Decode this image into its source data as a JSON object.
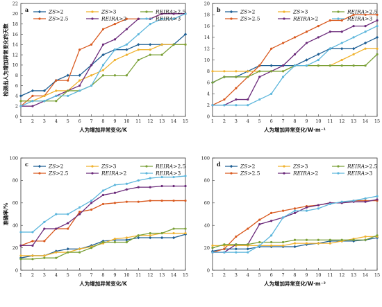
{
  "chart_data": [
    {
      "type": "line",
      "panel_label": "a",
      "xlabel": "人为增加异常变化/K",
      "ylabel": "检测出人为增加异常变化的天数",
      "xlim": [
        1,
        15
      ],
      "ylim": [
        0,
        22
      ],
      "xticks": [
        1,
        2,
        3,
        4,
        5,
        6,
        7,
        8,
        9,
        10,
        11,
        12,
        13,
        14,
        15
      ],
      "yticks": [
        0,
        2,
        4,
        6,
        8,
        10,
        12,
        14,
        16,
        18,
        20,
        22
      ],
      "grid": false,
      "legend": "top",
      "x": [
        1,
        2,
        3,
        4,
        5,
        6,
        7,
        8,
        9,
        10,
        11,
        12,
        13,
        14,
        15
      ],
      "series": [
        {
          "name_italic": "ZS",
          "name_rest": ">2",
          "color": "#1f5f94",
          "marker": "diamond",
          "values": [
            4,
            5,
            5,
            7,
            8,
            8,
            10,
            12,
            13,
            13,
            14,
            14,
            14,
            14,
            16
          ]
        },
        {
          "name_italic": "ZS",
          "name_rest": ">2.5",
          "color": "#d9591e",
          "marker": "circle",
          "values": [
            2,
            4,
            4,
            7,
            7,
            13,
            14,
            17,
            18,
            19,
            19,
            19,
            20,
            20,
            20
          ]
        },
        {
          "name_italic": "ZS",
          "name_rest": ">3",
          "color": "#f0b22e",
          "marker": "circle",
          "values": [
            3,
            3,
            4,
            5,
            5,
            7,
            8,
            9,
            11,
            12,
            13,
            13,
            14,
            14,
            14
          ]
        },
        {
          "name_italic": "REIRA",
          "name_rest": ">2",
          "color": "#6b2a7a",
          "marker": "circle",
          "values": [
            2,
            2,
            3,
            4,
            5,
            6,
            10,
            14,
            15,
            17,
            19,
            19,
            20,
            20,
            20
          ]
        },
        {
          "name_italic": "REIRA",
          "name_rest": ">2.5",
          "color": "#7aa037",
          "marker": "circle",
          "values": [
            3,
            3,
            3,
            3,
            5,
            5,
            6,
            8,
            8,
            8,
            11,
            12,
            12,
            14,
            14
          ]
        },
        {
          "name_italic": "REIRA",
          "name_rest": ">3",
          "color": "#5cb6dc",
          "marker": "circle",
          "values": [
            2,
            3,
            3,
            4,
            4,
            5,
            6,
            10,
            13,
            14,
            16,
            18,
            19,
            19,
            20
          ]
        }
      ]
    },
    {
      "type": "line",
      "panel_label": "b",
      "xlabel": "人为增加异常变化/W·m⁻¹",
      "ylabel": "",
      "xlim": [
        1,
        15
      ],
      "ylim": [
        0,
        20
      ],
      "xticks": [
        1,
        2,
        3,
        4,
        5,
        6,
        7,
        8,
        9,
        10,
        11,
        12,
        13,
        14,
        15
      ],
      "yticks": [
        0,
        2,
        4,
        6,
        8,
        10,
        12,
        14,
        16,
        18,
        20
      ],
      "grid": false,
      "legend": "top",
      "x": [
        1,
        2,
        3,
        4,
        5,
        6,
        7,
        8,
        9,
        10,
        11,
        12,
        13,
        14,
        15
      ],
      "series": [
        {
          "name_italic": "ZS",
          "name_rest": ">2",
          "color": "#1f5f94",
          "marker": "diamond",
          "values": [
            6,
            7,
            7,
            8,
            9,
            9,
            9,
            9,
            10,
            11,
            12,
            12,
            12,
            13,
            14
          ]
        },
        {
          "name_italic": "ZS",
          "name_rest": ">2.5",
          "color": "#d9591e",
          "marker": "circle",
          "values": [
            2,
            3,
            5,
            7,
            9,
            12,
            13,
            14,
            15,
            16,
            17,
            17,
            18,
            18,
            18
          ]
        },
        {
          "name_italic": "ZS",
          "name_rest": ">3",
          "color": "#f0b22e",
          "marker": "circle",
          "values": [
            8,
            8,
            8,
            8,
            8,
            8,
            8,
            9,
            9,
            9,
            9,
            10,
            11,
            12,
            12
          ]
        },
        {
          "name_italic": "REIRA",
          "name_rest": ">2",
          "color": "#6b2a7a",
          "marker": "circle",
          "values": [
            2,
            2,
            3,
            3,
            7,
            8,
            9,
            11,
            13,
            14,
            15,
            15,
            16,
            16,
            17
          ]
        },
        {
          "name_italic": "REIRA",
          "name_rest": ">2.5",
          "color": "#7aa037",
          "marker": "circle",
          "values": [
            6,
            7,
            7,
            7,
            8,
            8,
            8,
            9,
            9,
            9,
            9,
            9,
            9,
            9,
            11
          ]
        },
        {
          "name_italic": "REIRA",
          "name_rest": ">3",
          "color": "#5cb6dc",
          "marker": "circle",
          "values": [
            2,
            2,
            2,
            2,
            3,
            4,
            7,
            9,
            9,
            10,
            12,
            13,
            14,
            15,
            16
          ]
        }
      ]
    },
    {
      "type": "line",
      "panel_label": "c",
      "xlabel": "人为增加异常变化/K",
      "ylabel": "准确率/%",
      "xlim": [
        1,
        15
      ],
      "ylim": [
        0,
        100
      ],
      "xticks": [
        1,
        2,
        3,
        4,
        5,
        6,
        7,
        8,
        9,
        10,
        11,
        12,
        13,
        14,
        15
      ],
      "yticks": [
        0,
        20,
        40,
        60,
        80,
        100
      ],
      "grid": false,
      "legend": "top",
      "x": [
        1,
        2,
        3,
        4,
        5,
        6,
        7,
        8,
        9,
        10,
        11,
        12,
        13,
        14,
        15
      ],
      "series": [
        {
          "name_italic": "ZS",
          "name_rest": ">2",
          "color": "#1f5f94",
          "marker": "diamond",
          "values": [
            11,
            13,
            13,
            17,
            19,
            19,
            22,
            26,
            27,
            27,
            29,
            29,
            29,
            29,
            32
          ]
        },
        {
          "name_italic": "ZS",
          "name_rest": ">2.5",
          "color": "#d9591e",
          "marker": "circle",
          "values": [
            22,
            26,
            26,
            37,
            37,
            52,
            54,
            59,
            60,
            61,
            61,
            62,
            62,
            62,
            62
          ]
        },
        {
          "name_italic": "ZS",
          "name_rest": ">3",
          "color": "#f0b22e",
          "marker": "circle",
          "values": [
            13,
            13,
            13,
            16,
            16,
            19,
            21,
            24,
            28,
            29,
            31,
            31,
            33,
            33,
            33
          ]
        },
        {
          "name_italic": "REIRA",
          "name_rest": ">2",
          "color": "#6b2a7a",
          "marker": "circle",
          "values": [
            22,
            22,
            37,
            37,
            42,
            50,
            60,
            67,
            69,
            72,
            74,
            74,
            75,
            75,
            75
          ]
        },
        {
          "name_italic": "REIRA",
          "name_rest": ">2.5",
          "color": "#7aa037",
          "marker": "circle",
          "values": [
            10,
            10,
            11,
            11,
            16,
            16,
            20,
            25,
            25,
            25,
            31,
            33,
            33,
            37,
            37
          ]
        },
        {
          "name_italic": "REIRA",
          "name_rest": ">3",
          "color": "#5cb6dc",
          "marker": "circle",
          "values": [
            34,
            34,
            43,
            50,
            50,
            56,
            62,
            71,
            76,
            77,
            80,
            82,
            83,
            83,
            84
          ]
        }
      ]
    },
    {
      "type": "line",
      "panel_label": "d",
      "xlabel": "人为增加异常变化/W·m⁻²",
      "ylabel": "",
      "xlim": [
        1,
        15
      ],
      "ylim": [
        0,
        100
      ],
      "xticks": [
        1,
        2,
        3,
        4,
        5,
        6,
        7,
        8,
        9,
        10,
        11,
        12,
        13,
        14,
        15
      ],
      "yticks": [
        0,
        20,
        40,
        60,
        80,
        100
      ],
      "grid": false,
      "legend": "top",
      "x": [
        1,
        2,
        3,
        4,
        5,
        6,
        7,
        8,
        9,
        10,
        11,
        12,
        13,
        14,
        15
      ],
      "series": [
        {
          "name_italic": "ZS",
          "name_rest": ">2",
          "color": "#1f5f94",
          "marker": "diamond",
          "values": [
            17,
            19,
            19,
            19,
            21,
            21,
            21,
            21,
            23,
            24,
            26,
            26,
            26,
            27,
            29
          ]
        },
        {
          "name_italic": "ZS",
          "name_rest": ">2.5",
          "color": "#d9591e",
          "marker": "circle",
          "values": [
            16,
            19,
            30,
            37,
            45,
            51,
            53,
            55,
            57,
            58,
            60,
            60,
            62,
            62,
            62
          ]
        },
        {
          "name_italic": "ZS",
          "name_rest": ">3",
          "color": "#f0b22e",
          "marker": "circle",
          "values": [
            22,
            22,
            22,
            22,
            22,
            22,
            22,
            24,
            24,
            24,
            24,
            26,
            28,
            30,
            30
          ]
        },
        {
          "name_italic": "REIRA",
          "name_rest": ">2",
          "color": "#6b2a7a",
          "marker": "circle",
          "values": [
            16,
            16,
            23,
            23,
            41,
            44,
            47,
            51,
            56,
            58,
            60,
            60,
            61,
            61,
            63
          ]
        },
        {
          "name_italic": "REIRA",
          "name_rest": ">2.5",
          "color": "#7aa037",
          "marker": "circle",
          "values": [
            20,
            23,
            23,
            23,
            25,
            25,
            25,
            27,
            27,
            27,
            27,
            27,
            27,
            27,
            31
          ]
        },
        {
          "name_italic": "REIRA",
          "name_rest": ">3",
          "color": "#5cb6dc",
          "marker": "circle",
          "values": [
            16,
            16,
            16,
            16,
            22,
            31,
            47,
            53,
            53,
            55,
            59,
            61,
            62,
            64,
            66
          ]
        }
      ]
    }
  ]
}
